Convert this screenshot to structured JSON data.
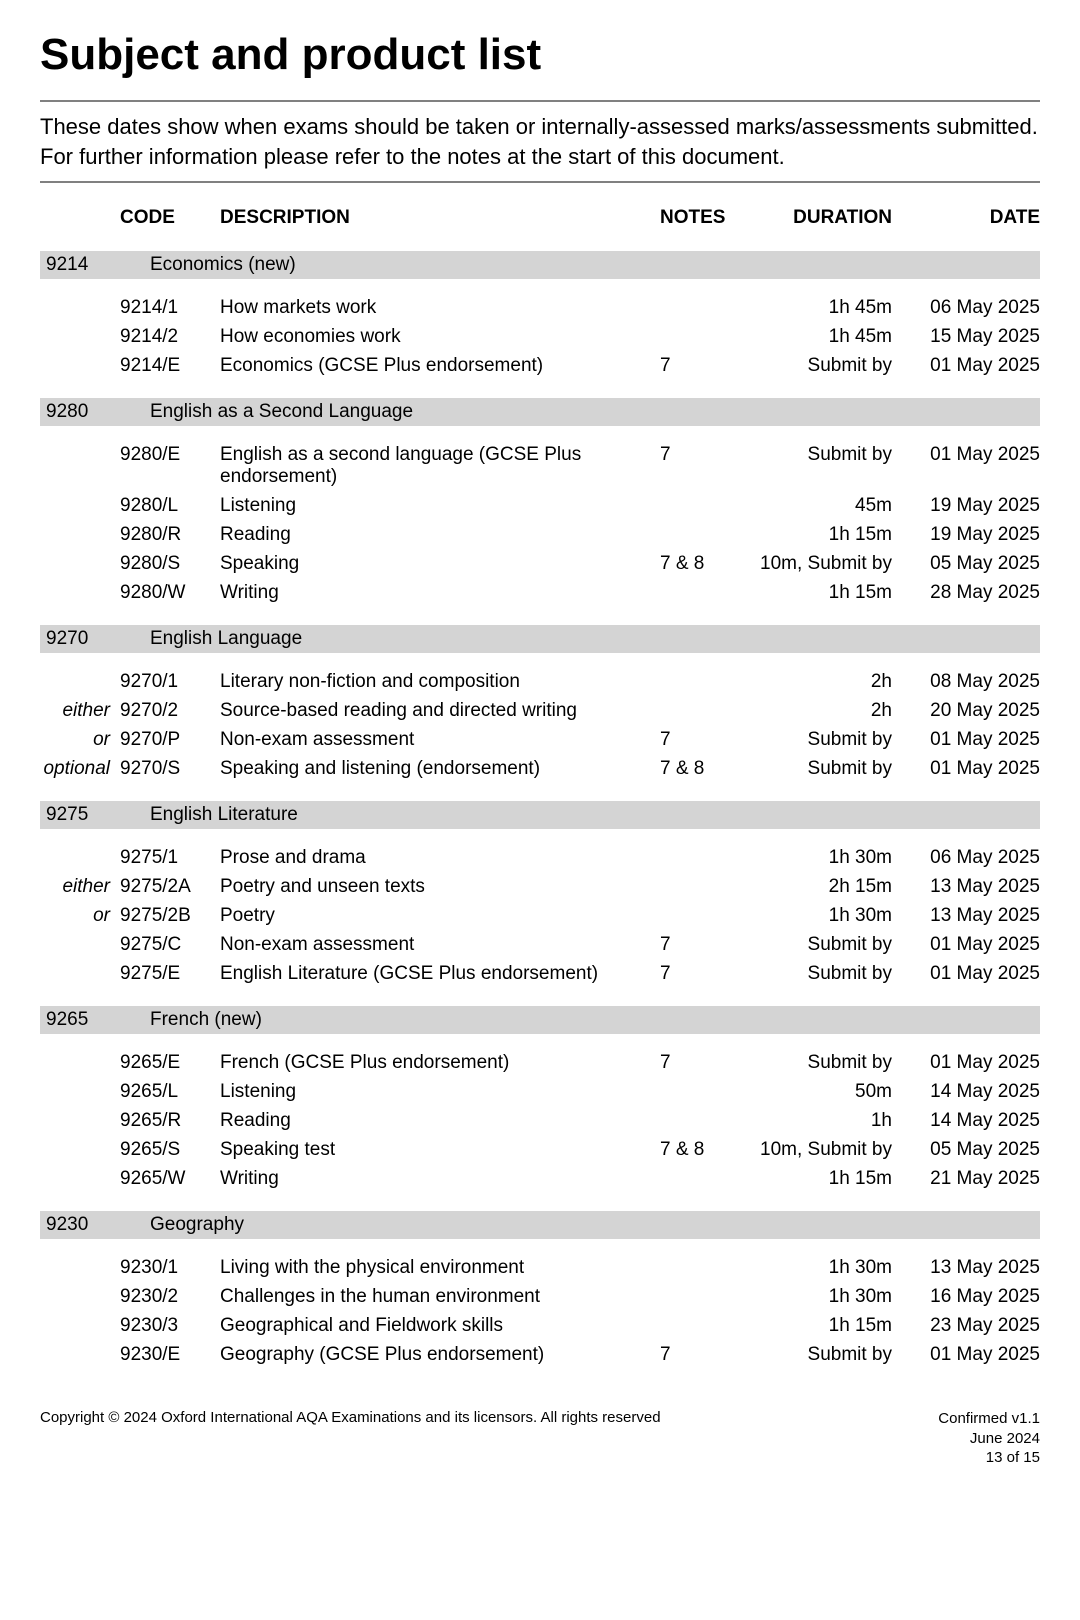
{
  "title": "Subject and product list",
  "intro": "These dates show when exams should be taken or internally-assessed marks/assessments submitted.  For further information please refer to the notes at the start of this document.",
  "headers": {
    "code": "CODE",
    "description": "DESCRIPTION",
    "notes": "NOTES",
    "duration": "DURATION",
    "date": "DATE"
  },
  "colors": {
    "group_bg": "#d4d4d4",
    "rule": "#808080",
    "text": "#000000",
    "background": "#ffffff"
  },
  "fonts": {
    "title_size_pt": 33,
    "body_size_pt": 14,
    "footer_size_pt": 11
  },
  "groups": [
    {
      "code": "9214",
      "title": "Economics (new)",
      "rows": [
        {
          "prefix": "",
          "code": "9214/1",
          "desc": "How markets work",
          "notes": "",
          "duration": "1h 45m",
          "date": "06 May 2025"
        },
        {
          "prefix": "",
          "code": "9214/2",
          "desc": "How economies work",
          "notes": "",
          "duration": "1h 45m",
          "date": "15 May 2025"
        },
        {
          "prefix": "",
          "code": "9214/E",
          "desc": "Economics (GCSE Plus endorsement)",
          "notes": "7",
          "duration": "Submit by",
          "date": "01 May 2025"
        }
      ]
    },
    {
      "code": "9280",
      "title": "English as a Second Language",
      "rows": [
        {
          "prefix": "",
          "code": "9280/E",
          "desc": "English as a second language (GCSE Plus endorsement)",
          "notes": "7",
          "duration": "Submit by",
          "date": "01 May 2025"
        },
        {
          "prefix": "",
          "code": "9280/L",
          "desc": "Listening",
          "notes": "",
          "duration": "45m",
          "date": "19 May 2025"
        },
        {
          "prefix": "",
          "code": "9280/R",
          "desc": "Reading",
          "notes": "",
          "duration": "1h 15m",
          "date": "19 May 2025"
        },
        {
          "prefix": "",
          "code": "9280/S",
          "desc": "Speaking",
          "notes": "7 & 8",
          "duration": "10m, Submit by",
          "date": "05 May 2025"
        },
        {
          "prefix": "",
          "code": "9280/W",
          "desc": "Writing",
          "notes": "",
          "duration": "1h 15m",
          "date": "28 May 2025"
        }
      ]
    },
    {
      "code": "9270",
      "title": "English Language",
      "rows": [
        {
          "prefix": "",
          "code": "9270/1",
          "desc": "Literary non-fiction and composition",
          "notes": "",
          "duration": "2h",
          "date": "08 May 2025"
        },
        {
          "prefix": "either",
          "code": "9270/2",
          "desc": "Source-based reading and directed writing",
          "notes": "",
          "duration": "2h",
          "date": "20 May 2025"
        },
        {
          "prefix": "or",
          "code": "9270/P",
          "desc": "Non-exam assessment",
          "notes": "7",
          "duration": "Submit by",
          "date": "01 May 2025"
        },
        {
          "prefix": "optional",
          "code": "9270/S",
          "desc": "Speaking and listening (endorsement)",
          "notes": "7 & 8",
          "duration": "Submit by",
          "date": "01 May 2025"
        }
      ]
    },
    {
      "code": "9275",
      "title": "English Literature",
      "rows": [
        {
          "prefix": "",
          "code": "9275/1",
          "desc": "Prose and drama",
          "notes": "",
          "duration": "1h 30m",
          "date": "06 May 2025"
        },
        {
          "prefix": "either",
          "code": "9275/2A",
          "desc": "Poetry and unseen texts",
          "notes": "",
          "duration": "2h 15m",
          "date": "13 May 2025"
        },
        {
          "prefix": "or",
          "code": "9275/2B",
          "desc": "Poetry",
          "notes": "",
          "duration": "1h 30m",
          "date": "13 May 2025"
        },
        {
          "prefix": "",
          "code": "9275/C",
          "desc": "Non-exam assessment",
          "notes": "7",
          "duration": "Submit by",
          "date": "01 May 2025"
        },
        {
          "prefix": "",
          "code": "9275/E",
          "desc": "English Literature (GCSE Plus endorsement)",
          "notes": "7",
          "duration": "Submit by",
          "date": "01 May 2025"
        }
      ]
    },
    {
      "code": "9265",
      "title": "French (new)",
      "rows": [
        {
          "prefix": "",
          "code": "9265/E",
          "desc": "French (GCSE Plus endorsement)",
          "notes": "7",
          "duration": "Submit by",
          "date": "01 May 2025"
        },
        {
          "prefix": "",
          "code": "9265/L",
          "desc": "Listening",
          "notes": "",
          "duration": "50m",
          "date": "14 May 2025"
        },
        {
          "prefix": "",
          "code": "9265/R",
          "desc": "Reading",
          "notes": "",
          "duration": "1h",
          "date": "14 May 2025"
        },
        {
          "prefix": "",
          "code": "9265/S",
          "desc": "Speaking test",
          "notes": "7 & 8",
          "duration": "10m, Submit by",
          "date": "05 May 2025"
        },
        {
          "prefix": "",
          "code": "9265/W",
          "desc": "Writing",
          "notes": "",
          "duration": "1h 15m",
          "date": "21 May 2025"
        }
      ]
    },
    {
      "code": "9230",
      "title": "Geography",
      "rows": [
        {
          "prefix": "",
          "code": "9230/1",
          "desc": "Living with the physical environment",
          "notes": "",
          "duration": "1h 30m",
          "date": "13 May 2025"
        },
        {
          "prefix": "",
          "code": "9230/2",
          "desc": "Challenges in the human environment",
          "notes": "",
          "duration": "1h 30m",
          "date": "16 May 2025"
        },
        {
          "prefix": "",
          "code": "9230/3",
          "desc": "Geographical and Fieldwork skills",
          "notes": "",
          "duration": "1h 15m",
          "date": "23 May 2025"
        },
        {
          "prefix": "",
          "code": "9230/E",
          "desc": "Geography (GCSE Plus endorsement)",
          "notes": "7",
          "duration": "Submit by",
          "date": "01 May 2025"
        }
      ]
    }
  ],
  "footer": {
    "copyright": "Copyright © 2024 Oxford International AQA Examinations and its licensors. All rights reserved",
    "status": "Confirmed v1.1",
    "version_date": "June 2024",
    "page": "13 of 15"
  }
}
